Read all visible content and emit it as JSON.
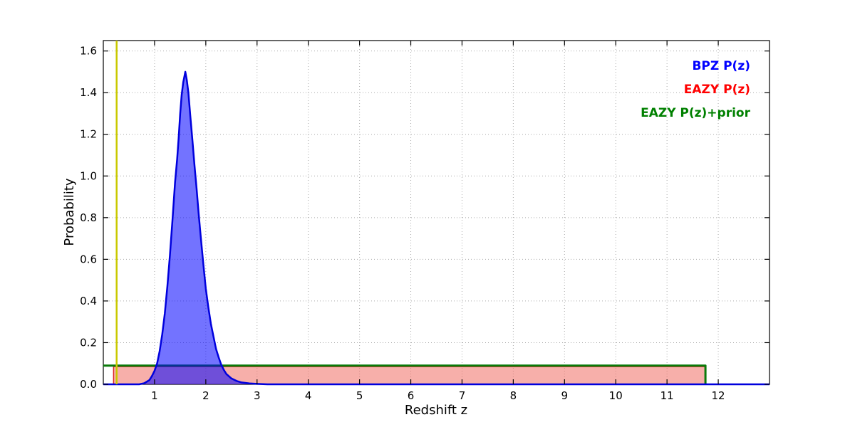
{
  "figure": {
    "background": "#ffffff",
    "frame_color": "#000000"
  },
  "chart_data": {
    "type": "line",
    "title": "",
    "xlabel": "Redshift z",
    "ylabel": "Probability",
    "xlim": [
      0,
      13
    ],
    "ylim": [
      0,
      1.65
    ],
    "xticks": [
      1,
      2,
      3,
      4,
      5,
      6,
      7,
      8,
      9,
      10,
      11,
      12
    ],
    "xtick_labels": [
      "1",
      "2",
      "3",
      "4",
      "5",
      "6",
      "7",
      "8",
      "9",
      "10",
      "11",
      "12"
    ],
    "yticks": [
      0,
      0.2,
      0.4,
      0.6,
      0.8,
      1.0,
      1.2,
      1.4,
      1.6
    ],
    "ytick_labels": [
      "0.0",
      "0.2",
      "0.4",
      "0.6",
      "0.8",
      "1.0",
      "1.2",
      "1.4",
      "1.6"
    ],
    "grid": {
      "on": true,
      "style": "dotted",
      "color": "#aaaaaa"
    },
    "legend": {
      "position": "upper right",
      "entries": [
        {
          "label": "BPZ P(z)",
          "color": "#0000ff"
        },
        {
          "label": "EAZY P(z)",
          "color": "#ff0000"
        },
        {
          "label": "EAZY P(z)+prior",
          "color": "#008000"
        }
      ]
    },
    "series": [
      {
        "name": "EAZY P(z)",
        "type": "line",
        "color": "#dd2222",
        "width": 1.5,
        "fill": "rgba(240,110,100,0.55)",
        "points": [
          [
            0,
            0
          ],
          [
            0.2,
            0
          ],
          [
            0.2,
            0.085
          ],
          [
            11.75,
            0.085
          ],
          [
            11.75,
            0
          ],
          [
            13,
            0
          ]
        ]
      },
      {
        "name": "EAZY P(z)+prior",
        "type": "line",
        "color": "#0a7a0a",
        "width": 3,
        "fill": "none",
        "points": [
          [
            0,
            0.09
          ],
          [
            11.75,
            0.09
          ],
          [
            11.75,
            0
          ]
        ]
      },
      {
        "name": "BPZ P(z)",
        "type": "line",
        "color": "#0000dd",
        "width": 2.5,
        "fill": "rgba(0,0,255,0.55)",
        "points": [
          [
            0,
            0
          ],
          [
            0.7,
            0
          ],
          [
            0.8,
            0.005
          ],
          [
            0.9,
            0.02
          ],
          [
            0.95,
            0.04
          ],
          [
            1.0,
            0.065
          ],
          [
            1.05,
            0.1
          ],
          [
            1.1,
            0.16
          ],
          [
            1.15,
            0.24
          ],
          [
            1.2,
            0.34
          ],
          [
            1.25,
            0.47
          ],
          [
            1.3,
            0.62
          ],
          [
            1.35,
            0.79
          ],
          [
            1.4,
            0.97
          ],
          [
            1.44,
            1.08
          ],
          [
            1.47,
            1.18
          ],
          [
            1.5,
            1.3
          ],
          [
            1.53,
            1.39
          ],
          [
            1.56,
            1.45
          ],
          [
            1.6,
            1.5
          ],
          [
            1.63,
            1.46
          ],
          [
            1.66,
            1.4
          ],
          [
            1.7,
            1.28
          ],
          [
            1.74,
            1.17
          ],
          [
            1.78,
            1.05
          ],
          [
            1.82,
            0.94
          ],
          [
            1.86,
            0.82
          ],
          [
            1.9,
            0.71
          ],
          [
            1.95,
            0.58
          ],
          [
            2.0,
            0.46
          ],
          [
            2.05,
            0.37
          ],
          [
            2.1,
            0.29
          ],
          [
            2.15,
            0.23
          ],
          [
            2.2,
            0.17
          ],
          [
            2.25,
            0.13
          ],
          [
            2.3,
            0.095
          ],
          [
            2.35,
            0.07
          ],
          [
            2.4,
            0.05
          ],
          [
            2.5,
            0.028
          ],
          [
            2.6,
            0.016
          ],
          [
            2.7,
            0.009
          ],
          [
            2.85,
            0.004
          ],
          [
            3.0,
            0.002
          ],
          [
            3.2,
            0
          ],
          [
            13,
            0
          ]
        ]
      },
      {
        "name": "spec-z marker",
        "type": "vline",
        "color": "#c9c900",
        "width": 2.5,
        "x": 0.26
      }
    ]
  }
}
